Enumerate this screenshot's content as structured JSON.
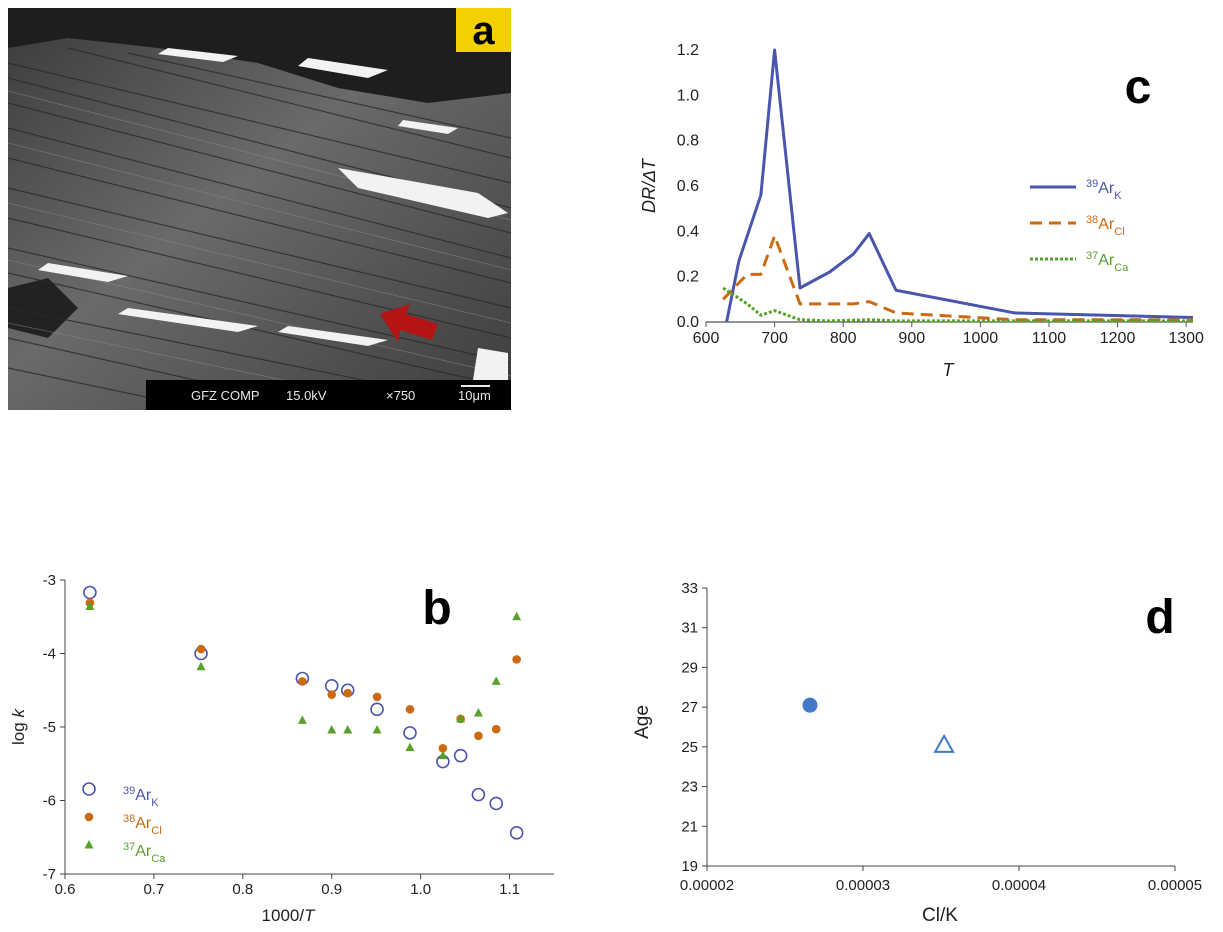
{
  "panel_a": {
    "letter": "a",
    "info_bar": {
      "label": "GFZ COMP",
      "voltage": "15.0kV",
      "magnification": "×750",
      "scale": "10μm"
    }
  },
  "colors": {
    "k": "#4a56ad",
    "cl": "#cc6a12",
    "ca": "#5aa02c",
    "d_point": "#4178c8",
    "tag_bg": "#f5d000",
    "arrow": "#b41414"
  },
  "chart_data": [
    {
      "panel": "c",
      "letter": "c",
      "type": "line",
      "xlabel": "T",
      "ylabel": "DR/ΔT",
      "xlim": [
        600,
        1310
      ],
      "ylim": [
        0,
        1.2
      ],
      "xticks": [
        "600",
        "700",
        "800",
        "900",
        "1000",
        "1100",
        "1200",
        "1300"
      ],
      "yticks": [
        "0.0",
        "0.2",
        "0.4",
        "0.6",
        "0.8",
        "1.0",
        "1.2"
      ],
      "legend": "right",
      "series": [
        {
          "name": "39ArK",
          "mass": "39",
          "element": "Ar",
          "sub": "K",
          "style": "solid",
          "x": [
            630,
            648,
            680,
            700,
            737,
            780,
            815,
            838,
            877,
            1050,
            1310
          ],
          "y": [
            0.0,
            0.27,
            0.56,
            1.2,
            0.15,
            0.22,
            0.3,
            0.39,
            0.14,
            0.04,
            0.02
          ]
        },
        {
          "name": "38ArCl",
          "mass": "38",
          "element": "Ar",
          "sub": "Cl",
          "style": "dashed",
          "x": [
            625,
            660,
            680,
            700,
            737,
            780,
            815,
            838,
            877,
            1050,
            1310
          ],
          "y": [
            0.1,
            0.21,
            0.21,
            0.38,
            0.08,
            0.08,
            0.08,
            0.09,
            0.04,
            0.01,
            0.01
          ]
        },
        {
          "name": "37ArCa",
          "mass": "37",
          "element": "Ar",
          "sub": "Ca",
          "style": "dotted",
          "x": [
            625,
            660,
            680,
            700,
            737,
            780,
            838,
            877,
            1050,
            1310
          ],
          "y": [
            0.15,
            0.08,
            0.03,
            0.05,
            0.01,
            0.005,
            0.01,
            0.005,
            0.005,
            0.005
          ]
        }
      ]
    },
    {
      "panel": "b",
      "letter": "b",
      "type": "scatter",
      "xlabel_main": "1000/",
      "xlabel_var": "T",
      "ylabel_main": "log ",
      "ylabel_var": "k",
      "xlim": [
        0.6,
        1.15
      ],
      "ylim": [
        -7,
        -3
      ],
      "xticks": [
        "0.6",
        "0.7",
        "0.8",
        "0.9",
        "1.0",
        "1.1"
      ],
      "yticks": [
        "-7",
        "-6",
        "-5",
        "-4",
        "-3"
      ],
      "legend": "bottom-left",
      "series": [
        {
          "name": "39ArK",
          "mass": "39",
          "element": "Ar",
          "sub": "K",
          "marker": "open-circle",
          "x": [
            0.628,
            0.753,
            0.867,
            0.9,
            0.918,
            0.951,
            0.988,
            1.025,
            1.045,
            1.065,
            1.085,
            1.108
          ],
          "y": [
            -3.17,
            -4.0,
            -4.34,
            -4.44,
            -4.5,
            -4.76,
            -5.08,
            -5.47,
            -5.39,
            -5.92,
            -6.04,
            -6.44
          ]
        },
        {
          "name": "38ArCl",
          "mass": "38",
          "element": "Ar",
          "sub": "Cl",
          "marker": "filled-circle",
          "x": [
            0.628,
            0.753,
            0.867,
            0.9,
            0.918,
            0.951,
            0.988,
            1.025,
            1.045,
            1.065,
            1.085,
            1.108
          ],
          "y": [
            -3.31,
            -3.94,
            -4.38,
            -4.56,
            -4.54,
            -4.59,
            -4.76,
            -5.29,
            -4.89,
            -5.12,
            -5.03,
            -4.08
          ]
        },
        {
          "name": "37ArCa",
          "mass": "37",
          "element": "Ar",
          "sub": "Ca",
          "marker": "triangle",
          "x": [
            0.628,
            0.753,
            0.867,
            0.9,
            0.918,
            0.951,
            0.988,
            1.025,
            1.045,
            1.065,
            1.085,
            1.108
          ],
          "y": [
            -3.36,
            -4.18,
            -4.91,
            -5.04,
            -5.04,
            -5.04,
            -5.28,
            -5.39,
            -4.89,
            -4.81,
            -4.38,
            -3.5
          ]
        }
      ]
    },
    {
      "panel": "d",
      "letter": "d",
      "type": "scatter",
      "xlabel": "Cl/K",
      "ylabel": "Age",
      "xlim": [
        2e-05,
        5e-05
      ],
      "ylim": [
        19,
        33
      ],
      "xticks": [
        "0.00002",
        "0.00003",
        "0.00004",
        "0.00005"
      ],
      "yticks": [
        "19",
        "21",
        "23",
        "25",
        "27",
        "29",
        "31",
        "33"
      ],
      "points": [
        {
          "marker": "filled-circle",
          "x": 2.66e-05,
          "y": 27.1
        },
        {
          "marker": "open-triangle",
          "x": 3.52e-05,
          "y": 25.1
        }
      ]
    }
  ]
}
